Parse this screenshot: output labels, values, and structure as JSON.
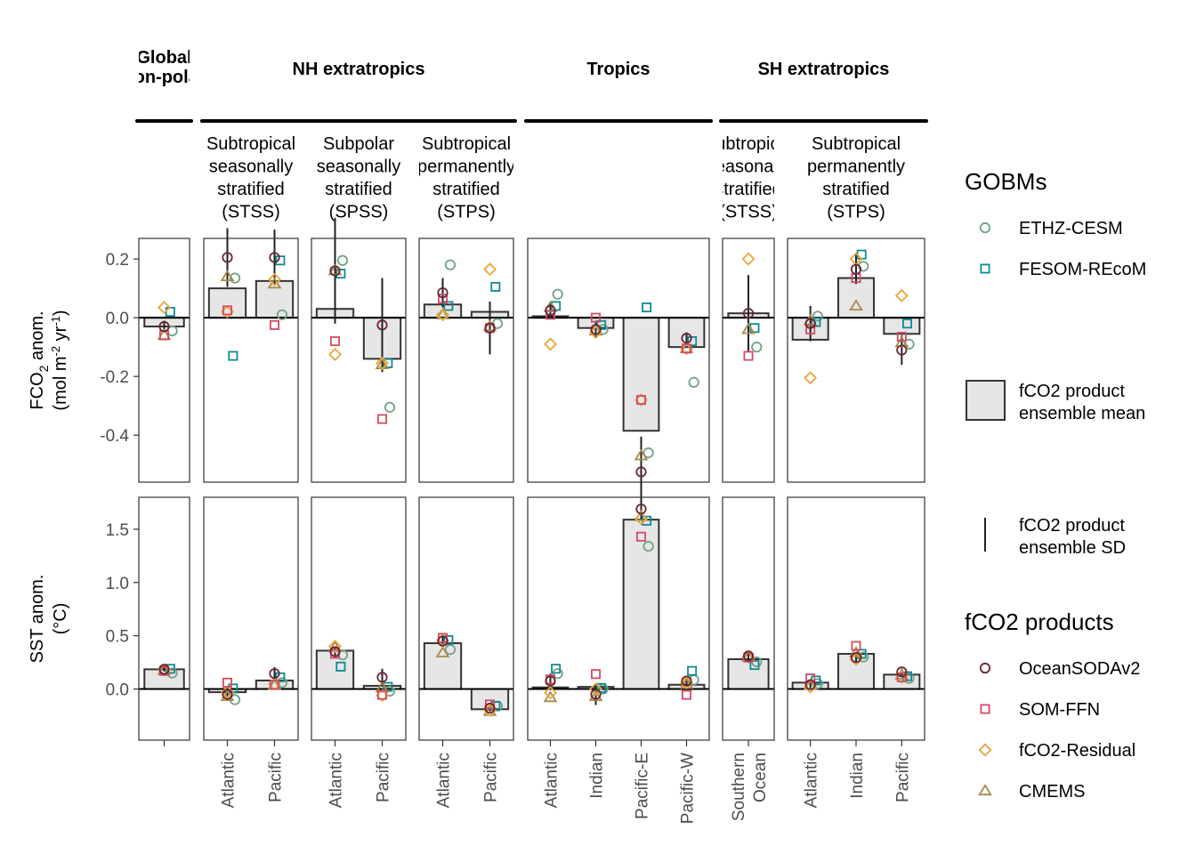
{
  "chart_data": {
    "type": "bar",
    "regions": [
      {
        "label_lines": [
          "Global",
          "non-polar"
        ],
        "panels": [
          0
        ]
      },
      {
        "label_lines": [
          "NH extratropics"
        ],
        "panels": [
          1,
          2,
          3
        ]
      },
      {
        "label_lines": [
          "Tropics"
        ],
        "panels": [
          4
        ]
      },
      {
        "label_lines": [
          "SH extratropics"
        ],
        "panels": [
          5,
          6
        ]
      }
    ],
    "panels": [
      {
        "biome_lines": [],
        "categories": [
          ""
        ]
      },
      {
        "biome_lines": [
          "Subtropical",
          "seasonally",
          "stratified",
          "(STSS)"
        ],
        "categories": [
          "Atlantic",
          "Pacific"
        ]
      },
      {
        "biome_lines": [
          "Subpolar",
          "seasonally",
          "stratified",
          "(SPSS)"
        ],
        "categories": [
          "Atlantic",
          "Pacific"
        ]
      },
      {
        "biome_lines": [
          "Subtropical",
          "permanently",
          "stratified",
          "(STPS)"
        ],
        "categories": [
          "Atlantic",
          "Pacific"
        ]
      },
      {
        "biome_lines": [],
        "categories": [
          "Atlantic",
          "Indian",
          "Pacific-E",
          "Pacific-W"
        ]
      },
      {
        "biome_lines": [
          "Subtropical",
          "seasonally",
          "stratified",
          "(STSS)"
        ],
        "categories": [
          "Southern|Ocean"
        ]
      },
      {
        "biome_lines": [
          "Subtropical",
          "permanently",
          "stratified",
          "(STPS)"
        ],
        "categories": [
          "Atlantic",
          "Indian",
          "Pacific"
        ]
      }
    ],
    "rows": [
      {
        "ylabel_main": "FCO",
        "ylabel_sub": "2",
        "ylabel_rest": " anom.",
        "ylabel_unit": "(mol m",
        "ylabel_unit_sup1": "-2",
        "ylabel_unit_mid": " yr",
        "ylabel_unit_sup2": "-1",
        "ylabel_unit_end": ")",
        "ylim": [
          -0.56,
          0.27
        ],
        "ticks": [
          0.2,
          0.0,
          -0.2,
          -0.4
        ],
        "tick_labels": [
          "0.2",
          "0.0",
          "-0.2",
          "-0.4"
        ],
        "mean": [
          [
            -0.03
          ],
          [
            0.1,
            0.125
          ],
          [
            0.03,
            -0.14
          ],
          [
            0.045,
            0.02
          ],
          [
            0.005,
            -0.035,
            -0.385,
            -0.1
          ],
          [
            0.015
          ],
          [
            -0.075,
            0.135,
            -0.055
          ]
        ],
        "sd": [
          [
            0.02
          ],
          [
            0.1,
            0.095
          ],
          [
            0.18,
            0.16
          ],
          [
            0.05,
            0.09
          ],
          [
            0.03,
            0.03,
            0.12,
            0.02
          ],
          [
            0.13
          ],
          [
            0.06,
            0.05,
            0.05
          ]
        ],
        "products": {
          "OceanSODAv2": [
            [
              -0.03
            ],
            [
              0.205,
              0.205
            ],
            [
              0.16,
              -0.025
            ],
            [
              0.085,
              -0.035
            ],
            [
              0.025,
              -0.04,
              -0.525,
              -0.07
            ],
            [
              0.015
            ],
            [
              -0.02,
              0.165,
              -0.11
            ]
          ],
          "SOM-FFN": [
            [
              -0.06
            ],
            [
              0.025,
              -0.025
            ],
            [
              -0.08,
              -0.345
            ],
            [
              0.065,
              -0.035
            ],
            [
              0.01,
              0.0,
              -0.28,
              -0.105
            ],
            [
              -0.13
            ],
            [
              -0.04,
              0.135,
              -0.065
            ]
          ],
          "fCO2-Residual": [
            [
              0.035
            ],
            [
              0.02,
              0.13
            ],
            [
              -0.125,
              -0.155
            ],
            [
              0.01,
              0.165
            ],
            [
              -0.09,
              -0.05,
              -0.28,
              -0.105
            ],
            [
              0.2
            ],
            [
              -0.205,
              0.2,
              0.075
            ]
          ],
          "CMEMS": [
            [
              -0.06
            ],
            [
              0.14,
              0.115
            ],
            [
              0.16,
              -0.16
            ],
            [
              0.01,
              -0.03
            ],
            [
              0.035,
              -0.045,
              -0.47,
              -0.105
            ],
            [
              -0.04
            ],
            [
              -0.01,
              0.04,
              -0.085
            ]
          ]
        },
        "gobms": {
          "ETHZ-CESM": [
            [
              -0.045
            ],
            [
              0.135,
              0.01
            ],
            [
              0.195,
              -0.305
            ],
            [
              0.18,
              -0.02
            ],
            [
              0.08,
              -0.04,
              -0.46,
              -0.22
            ],
            [
              -0.1
            ],
            [
              0.005,
              0.175,
              -0.09
            ]
          ],
          "FESOM-REcoM": [
            [
              0.02
            ],
            [
              -0.13,
              0.195
            ],
            [
              0.15,
              -0.155
            ],
            [
              0.04,
              0.105
            ],
            [
              0.04,
              -0.025,
              0.035,
              -0.08
            ],
            [
              -0.035
            ],
            [
              -0.015,
              0.215,
              -0.02
            ]
          ]
        }
      },
      {
        "ylabel_main": "SST anom.",
        "ylabel_sub": "",
        "ylabel_rest": "",
        "ylabel_unit": "(°C)",
        "ylabel_unit_sup1": "",
        "ylabel_unit_mid": "",
        "ylabel_unit_sup2": "",
        "ylabel_unit_end": "",
        "ylim": [
          -0.48,
          1.8
        ],
        "ticks": [
          1.5,
          1.0,
          0.5,
          0.0
        ],
        "tick_labels": [
          "1.5",
          "1.0",
          "0.5",
          "0.0"
        ],
        "mean": [
          [
            0.185
          ],
          [
            -0.03,
            0.08
          ],
          [
            0.36,
            0.03
          ],
          [
            0.43,
            -0.19
          ],
          [
            0.015,
            0.02,
            1.59,
            0.04
          ],
          [
            0.28
          ],
          [
            0.06,
            0.33,
            0.135
          ]
        ],
        "sd": [
          [
            0.02
          ],
          [
            0.04,
            0.06
          ],
          [
            0.04,
            0.08
          ],
          [
            0.05,
            0.03
          ],
          [
            0.07,
            0.1,
            0.1,
            0.04
          ],
          [
            0.03
          ],
          [
            0.03,
            0.05,
            0.03
          ]
        ],
        "products": {
          "OceanSODAv2": [
            [
              0.185
            ],
            [
              -0.05,
              0.145
            ],
            [
              0.35,
              0.11
            ],
            [
              0.45,
              -0.18
            ],
            [
              0.075,
              -0.05,
              1.69,
              0.075
            ],
            [
              0.31
            ],
            [
              0.04,
              0.295,
              0.16
            ]
          ],
          "SOM-FFN": [
            [
              0.17
            ],
            [
              0.06,
              0.04
            ],
            [
              0.33,
              -0.055
            ],
            [
              0.48,
              -0.145
            ],
            [
              0.09,
              0.14,
              1.43,
              -0.055
            ],
            [
              0.295
            ],
            [
              0.1,
              0.405,
              0.11
            ]
          ],
          "fCO2-Residual": [
            [
              0.18
            ],
            [
              -0.03,
              0.045
            ],
            [
              0.4,
              -0.06
            ],
            [
              0.46,
              -0.2
            ],
            [
              -0.035,
              0.0,
              1.6,
              0.06
            ],
            [
              0.3
            ],
            [
              0.02,
              0.28,
              0.11
            ]
          ],
          "CMEMS": [
            [
              0.175
            ],
            [
              -0.07,
              0.035
            ],
            [
              0.39,
              0.01
            ],
            [
              0.34,
              -0.21
            ],
            [
              -0.08,
              -0.07,
              1.62,
              0.045
            ],
            [
              0.3
            ],
            [
              0.035,
              0.34,
              0.13
            ]
          ]
        },
        "gobms": {
          "ETHZ-CESM": [
            [
              0.15
            ],
            [
              -0.1,
              0.06
            ],
            [
              0.32,
              -0.02
            ],
            [
              0.37,
              -0.16
            ],
            [
              0.145,
              0.0,
              1.34,
              0.085
            ],
            [
              0.255
            ],
            [
              0.05,
              0.3,
              0.1
            ]
          ],
          "FESOM-REcoM": [
            [
              0.19
            ],
            [
              0.005,
              0.11
            ],
            [
              0.21,
              0.02
            ],
            [
              0.46,
              -0.16
            ],
            [
              0.19,
              0.01,
              1.58,
              0.17
            ],
            [
              0.225
            ],
            [
              0.08,
              0.33,
              0.12
            ]
          ]
        }
      }
    ],
    "legend": {
      "gobms_title": "GOBMs",
      "gobms": [
        {
          "name": "ETHZ-CESM",
          "shape": "circle",
          "color": "#6fa287"
        },
        {
          "name": "FESOM-REcoM",
          "shape": "square",
          "color": "#0f8a94"
        }
      ],
      "bar_label_lines": [
        "fCO2 product",
        "ensemble mean"
      ],
      "sd_label_lines": [
        "fCO2 product",
        "ensemble SD"
      ],
      "products_title": "fCO2 products",
      "products": [
        {
          "name": "OceanSODAv2",
          "shape": "circle",
          "color": "#6b2433"
        },
        {
          "name": "SOM-FFN",
          "shape": "square",
          "color": "#d24b64"
        },
        {
          "name": "fCO2-Residual",
          "shape": "diamond",
          "color": "#e8a53a"
        },
        {
          "name": "CMEMS",
          "shape": "triangle",
          "color": "#a8894b"
        }
      ]
    },
    "colors": {
      "bar_fill": "#e6e6e6",
      "bar_stroke": "#333333",
      "panel_border": "#333333"
    }
  }
}
